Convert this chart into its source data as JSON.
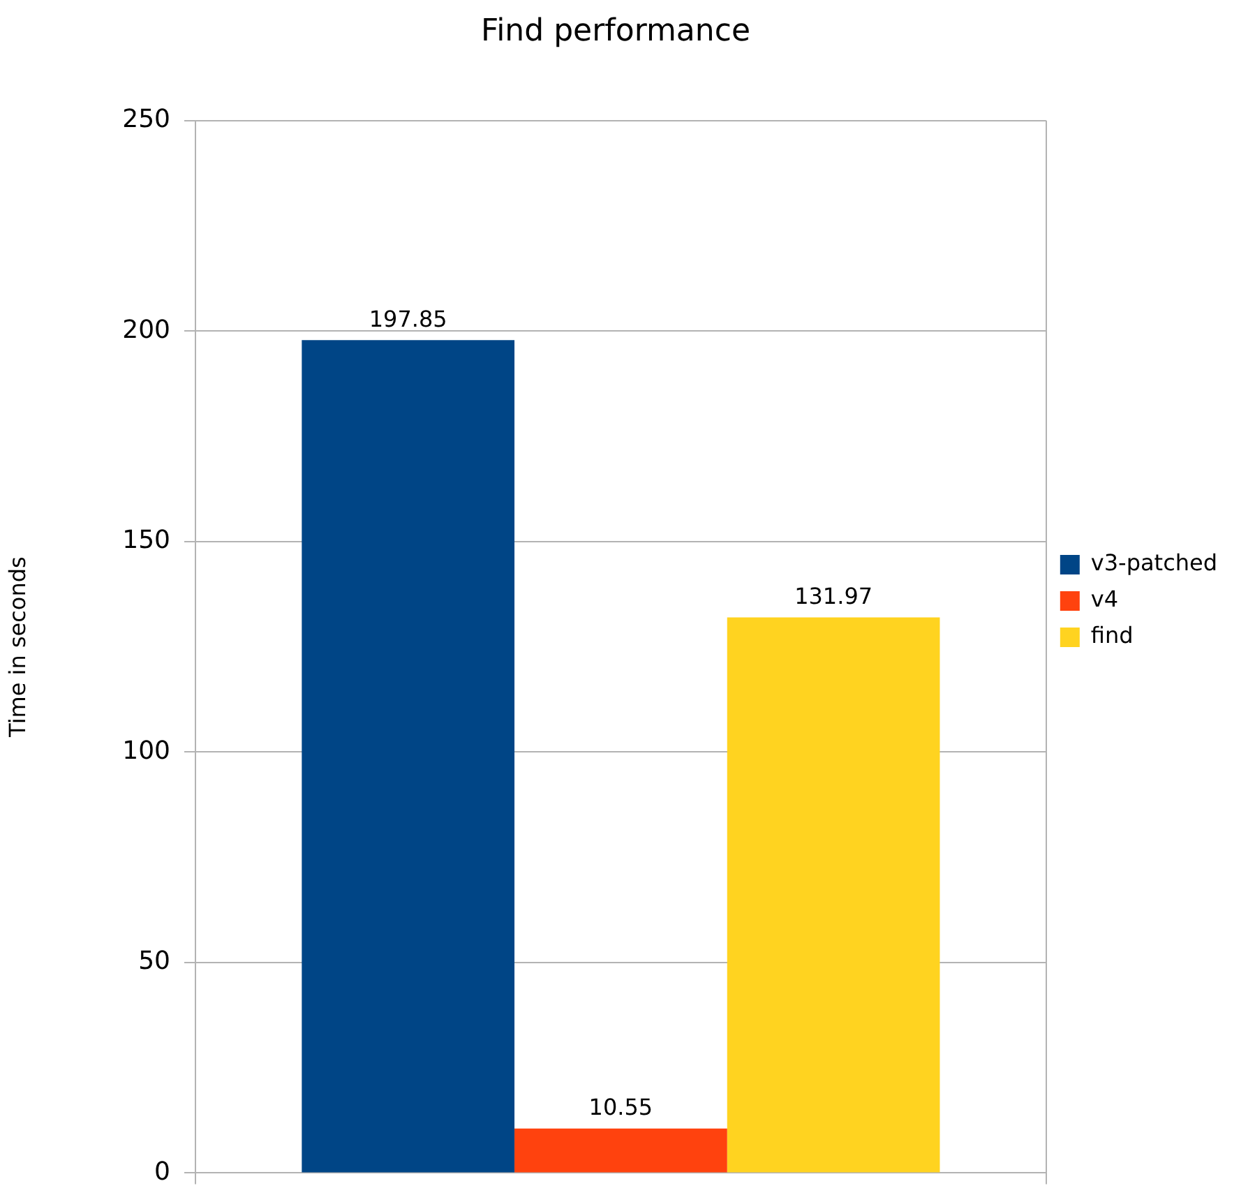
{
  "chart_data": {
    "type": "bar",
    "title": "Find performance",
    "ylabel": "Time in seconds",
    "categories": [
      null
    ],
    "series": [
      {
        "name": "v3-patched",
        "color": "#004586",
        "values": [
          197.85
        ]
      },
      {
        "name": "v4",
        "color": "#ff420e",
        "values": [
          10.55
        ]
      },
      {
        "name": "find",
        "color": "#ffd320",
        "values": [
          131.97
        ]
      }
    ],
    "ylim": [
      0,
      250
    ],
    "yticks": [
      0,
      50,
      100,
      150,
      200,
      250
    ],
    "grid": "y",
    "legend": "right",
    "data_labels": true
  }
}
